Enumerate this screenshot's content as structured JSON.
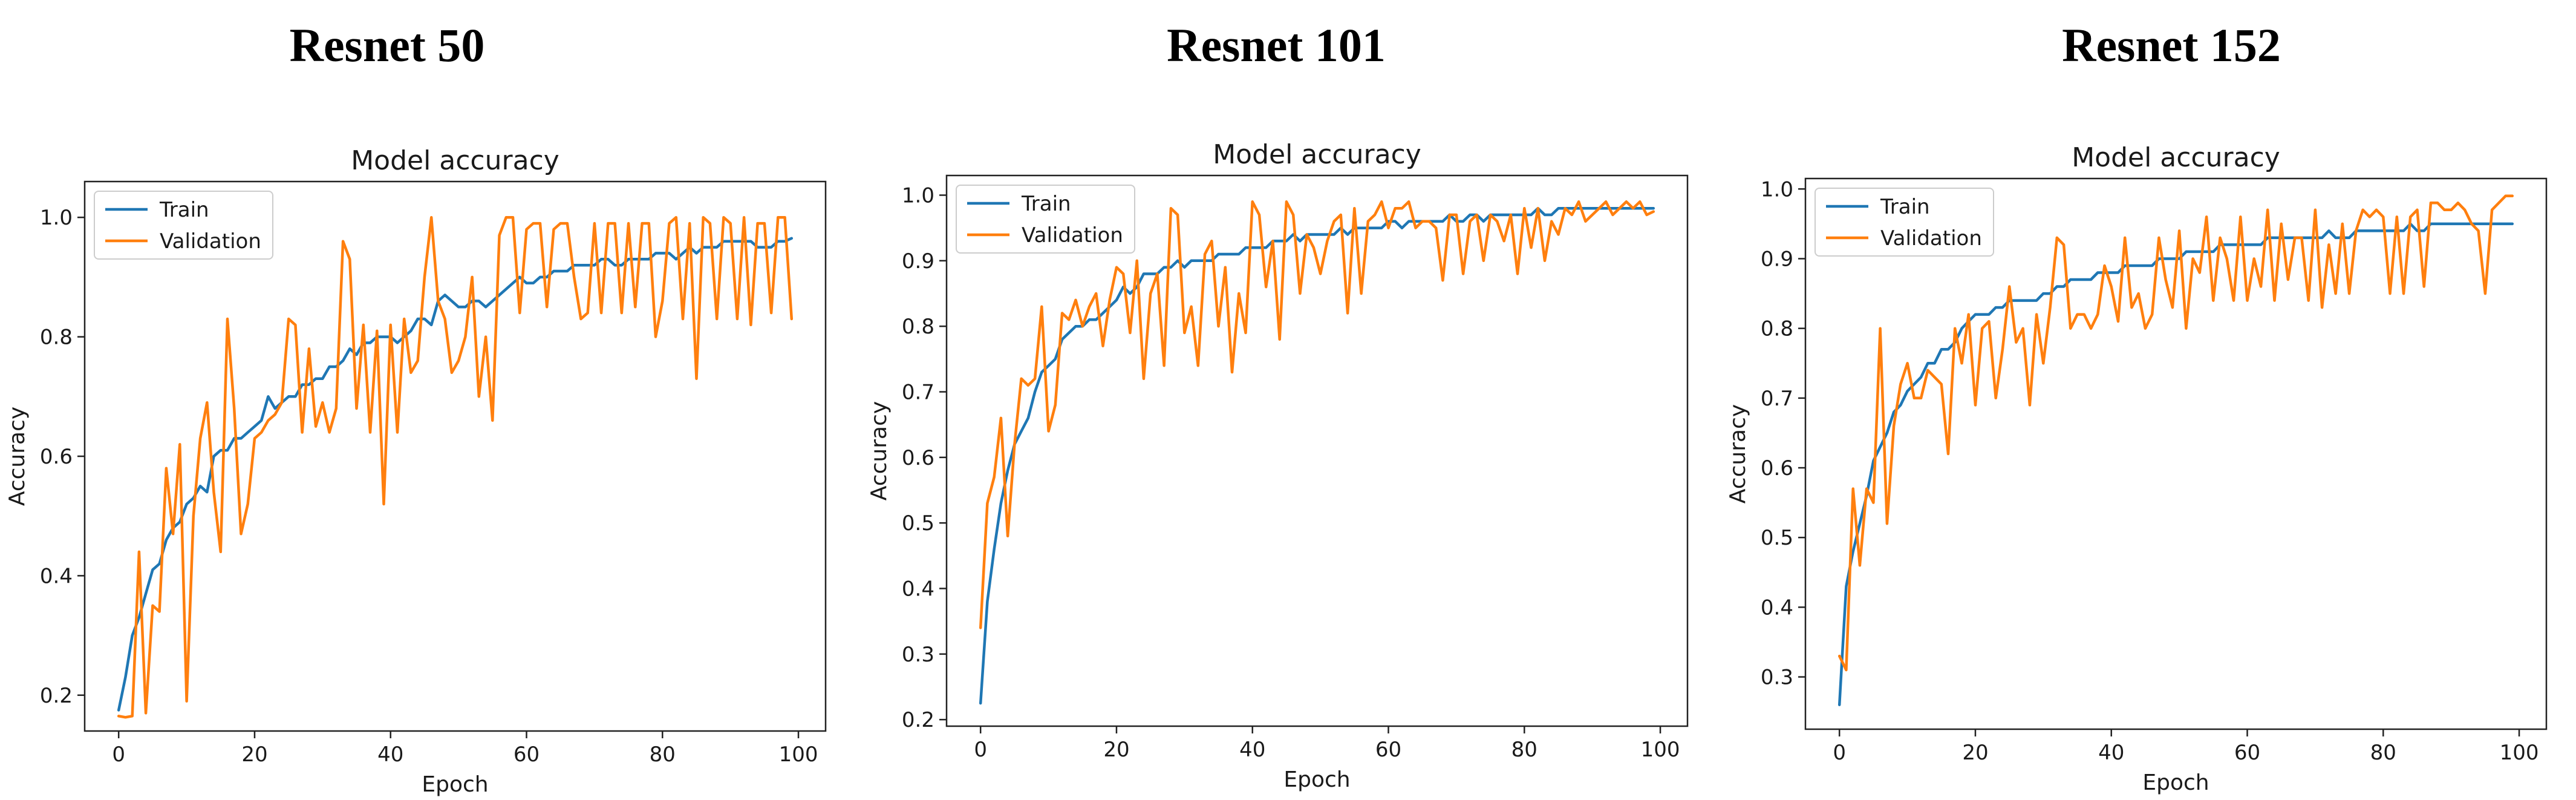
{
  "panels": [
    {
      "heading": "Resnet 50",
      "chart_data": {
        "type": "line",
        "title": "Model accuracy",
        "xlabel": "Epoch",
        "ylabel": "Accuracy",
        "xlim": [
          -5,
          104
        ],
        "ylim": [
          0.14,
          1.06
        ],
        "xticks": [
          0,
          20,
          40,
          60,
          80,
          100
        ],
        "yticks": [
          0.2,
          0.4,
          0.6,
          0.8,
          1.0
        ],
        "ytick_labels": [
          "0.2",
          "0.4",
          "0.6",
          "0.8",
          "1.0"
        ],
        "legend_position": "upper-left",
        "grid": false,
        "series": [
          {
            "name": "Train",
            "color": "#1f77b4",
            "values": [
              0.175,
              0.23,
              0.3,
              0.33,
              0.37,
              0.41,
              0.42,
              0.46,
              0.48,
              0.49,
              0.52,
              0.53,
              0.55,
              0.54,
              0.6,
              0.61,
              0.61,
              0.63,
              0.63,
              0.64,
              0.65,
              0.66,
              0.7,
              0.68,
              0.69,
              0.7,
              0.7,
              0.72,
              0.72,
              0.73,
              0.73,
              0.75,
              0.75,
              0.76,
              0.78,
              0.77,
              0.79,
              0.79,
              0.8,
              0.8,
              0.8,
              0.79,
              0.8,
              0.81,
              0.83,
              0.83,
              0.82,
              0.86,
              0.87,
              0.86,
              0.85,
              0.85,
              0.86,
              0.86,
              0.85,
              0.86,
              0.87,
              0.88,
              0.89,
              0.9,
              0.89,
              0.89,
              0.9,
              0.9,
              0.91,
              0.91,
              0.91,
              0.92,
              0.92,
              0.92,
              0.92,
              0.93,
              0.93,
              0.92,
              0.92,
              0.93,
              0.93,
              0.93,
              0.93,
              0.94,
              0.94,
              0.94,
              0.93,
              0.94,
              0.95,
              0.94,
              0.95,
              0.95,
              0.95,
              0.96,
              0.96,
              0.96,
              0.96,
              0.96,
              0.95,
              0.95,
              0.95,
              0.96,
              0.96,
              0.965
            ]
          },
          {
            "name": "Validation",
            "color": "#ff7f0e",
            "values": [
              0.165,
              0.163,
              0.165,
              0.44,
              0.17,
              0.35,
              0.34,
              0.58,
              0.47,
              0.62,
              0.19,
              0.5,
              0.63,
              0.69,
              0.54,
              0.44,
              0.83,
              0.68,
              0.47,
              0.52,
              0.63,
              0.64,
              0.66,
              0.67,
              0.69,
              0.83,
              0.82,
              0.64,
              0.78,
              0.65,
              0.69,
              0.64,
              0.68,
              0.96,
              0.93,
              0.68,
              0.82,
              0.64,
              0.81,
              0.52,
              0.82,
              0.64,
              0.83,
              0.74,
              0.76,
              0.9,
              1.0,
              0.86,
              0.83,
              0.74,
              0.76,
              0.8,
              0.9,
              0.7,
              0.8,
              0.66,
              0.97,
              1.0,
              1.0,
              0.84,
              0.98,
              0.99,
              0.99,
              0.85,
              0.98,
              0.99,
              0.99,
              0.9,
              0.83,
              0.84,
              0.99,
              0.84,
              0.99,
              0.99,
              0.84,
              0.99,
              0.85,
              0.99,
              0.99,
              0.8,
              0.86,
              0.99,
              1.0,
              0.83,
              0.99,
              0.73,
              1.0,
              0.99,
              0.83,
              1.0,
              0.99,
              0.83,
              1.0,
              0.82,
              0.99,
              0.99,
              0.84,
              1.0,
              1.0,
              0.83
            ]
          }
        ]
      }
    },
    {
      "heading": "Resnet 101",
      "chart_data": {
        "type": "line",
        "title": "Model accuracy",
        "xlabel": "Epoch",
        "ylabel": "Accuracy",
        "xlim": [
          -5,
          104
        ],
        "ylim": [
          0.19,
          1.03
        ],
        "xticks": [
          0,
          20,
          40,
          60,
          80,
          100
        ],
        "yticks": [
          0.2,
          0.3,
          0.4,
          0.5,
          0.6,
          0.7,
          0.8,
          0.9,
          1.0
        ],
        "ytick_labels": [
          "0.2",
          "0.3",
          "0.4",
          "0.5",
          "0.6",
          "0.7",
          "0.8",
          "0.9",
          "1.0"
        ],
        "legend_position": "upper-left",
        "grid": false,
        "series": [
          {
            "name": "Train",
            "color": "#1f77b4",
            "values": [
              0.225,
              0.38,
              0.46,
              0.53,
              0.58,
              0.62,
              0.64,
              0.66,
              0.7,
              0.73,
              0.74,
              0.75,
              0.78,
              0.79,
              0.8,
              0.8,
              0.81,
              0.81,
              0.82,
              0.83,
              0.84,
              0.86,
              0.85,
              0.86,
              0.88,
              0.88,
              0.88,
              0.89,
              0.89,
              0.9,
              0.89,
              0.9,
              0.9,
              0.9,
              0.9,
              0.91,
              0.91,
              0.91,
              0.91,
              0.92,
              0.92,
              0.92,
              0.92,
              0.93,
              0.93,
              0.93,
              0.94,
              0.93,
              0.94,
              0.94,
              0.94,
              0.94,
              0.94,
              0.95,
              0.94,
              0.95,
              0.95,
              0.95,
              0.95,
              0.95,
              0.96,
              0.96,
              0.95,
              0.96,
              0.96,
              0.96,
              0.96,
              0.96,
              0.96,
              0.97,
              0.96,
              0.96,
              0.97,
              0.97,
              0.96,
              0.97,
              0.97,
              0.97,
              0.97,
              0.97,
              0.97,
              0.97,
              0.98,
              0.97,
              0.97,
              0.98,
              0.98,
              0.98,
              0.98,
              0.98,
              0.98,
              0.98,
              0.98,
              0.98,
              0.98,
              0.98,
              0.98,
              0.98,
              0.98,
              0.98
            ]
          },
          {
            "name": "Validation",
            "color": "#ff7f0e",
            "values": [
              0.34,
              0.53,
              0.57,
              0.66,
              0.48,
              0.62,
              0.72,
              0.71,
              0.72,
              0.83,
              0.64,
              0.68,
              0.82,
              0.81,
              0.84,
              0.8,
              0.83,
              0.85,
              0.77,
              0.84,
              0.89,
              0.88,
              0.79,
              0.9,
              0.72,
              0.85,
              0.88,
              0.74,
              0.98,
              0.97,
              0.79,
              0.83,
              0.74,
              0.91,
              0.93,
              0.8,
              0.89,
              0.73,
              0.85,
              0.79,
              0.99,
              0.97,
              0.86,
              0.93,
              0.78,
              0.99,
              0.97,
              0.85,
              0.94,
              0.92,
              0.88,
              0.93,
              0.96,
              0.97,
              0.82,
              0.98,
              0.85,
              0.96,
              0.97,
              0.99,
              0.95,
              0.98,
              0.98,
              0.99,
              0.95,
              0.96,
              0.96,
              0.95,
              0.87,
              0.97,
              0.97,
              0.88,
              0.96,
              0.97,
              0.9,
              0.97,
              0.96,
              0.93,
              0.97,
              0.88,
              0.98,
              0.92,
              0.98,
              0.9,
              0.96,
              0.94,
              0.98,
              0.97,
              0.99,
              0.96,
              0.97,
              0.98,
              0.99,
              0.97,
              0.98,
              0.99,
              0.98,
              0.99,
              0.97,
              0.975
            ]
          }
        ]
      }
    },
    {
      "heading": "Resnet 152",
      "chart_data": {
        "type": "line",
        "title": "Model accuracy",
        "xlabel": "Epoch",
        "ylabel": "Accuracy",
        "xlim": [
          -5,
          104
        ],
        "ylim": [
          0.225,
          1.015
        ],
        "xticks": [
          0,
          20,
          40,
          60,
          80,
          100
        ],
        "yticks": [
          0.3,
          0.4,
          0.5,
          0.6,
          0.7,
          0.8,
          0.9,
          1.0
        ],
        "ytick_labels": [
          "0.3",
          "0.4",
          "0.5",
          "0.6",
          "0.7",
          "0.8",
          "0.9",
          "1.0"
        ],
        "legend_position": "upper-left",
        "grid": false,
        "series": [
          {
            "name": "Train",
            "color": "#1f77b4",
            "values": [
              0.26,
              0.43,
              0.48,
              0.52,
              0.56,
              0.61,
              0.63,
              0.65,
              0.68,
              0.69,
              0.71,
              0.72,
              0.73,
              0.75,
              0.75,
              0.77,
              0.77,
              0.78,
              0.8,
              0.81,
              0.82,
              0.82,
              0.82,
              0.83,
              0.83,
              0.84,
              0.84,
              0.84,
              0.84,
              0.84,
              0.85,
              0.85,
              0.86,
              0.86,
              0.87,
              0.87,
              0.87,
              0.87,
              0.88,
              0.88,
              0.88,
              0.88,
              0.89,
              0.89,
              0.89,
              0.89,
              0.89,
              0.9,
              0.9,
              0.9,
              0.9,
              0.91,
              0.91,
              0.91,
              0.91,
              0.91,
              0.92,
              0.92,
              0.92,
              0.92,
              0.92,
              0.92,
              0.92,
              0.93,
              0.93,
              0.93,
              0.93,
              0.93,
              0.93,
              0.93,
              0.93,
              0.93,
              0.94,
              0.93,
              0.93,
              0.93,
              0.94,
              0.94,
              0.94,
              0.94,
              0.94,
              0.94,
              0.94,
              0.94,
              0.95,
              0.94,
              0.94,
              0.95,
              0.95,
              0.95,
              0.95,
              0.95,
              0.95,
              0.95,
              0.95,
              0.95,
              0.95,
              0.95,
              0.95,
              0.95
            ]
          },
          {
            "name": "Validation",
            "color": "#ff7f0e",
            "values": [
              0.33,
              0.31,
              0.57,
              0.46,
              0.57,
              0.55,
              0.8,
              0.52,
              0.66,
              0.72,
              0.75,
              0.7,
              0.7,
              0.74,
              0.73,
              0.72,
              0.62,
              0.8,
              0.75,
              0.82,
              0.69,
              0.8,
              0.81,
              0.7,
              0.77,
              0.86,
              0.78,
              0.8,
              0.69,
              0.82,
              0.75,
              0.83,
              0.93,
              0.92,
              0.8,
              0.82,
              0.82,
              0.8,
              0.82,
              0.89,
              0.86,
              0.81,
              0.93,
              0.83,
              0.85,
              0.8,
              0.82,
              0.93,
              0.87,
              0.83,
              0.94,
              0.8,
              0.9,
              0.88,
              0.96,
              0.84,
              0.93,
              0.9,
              0.84,
              0.96,
              0.84,
              0.9,
              0.86,
              0.97,
              0.84,
              0.95,
              0.87,
              0.93,
              0.93,
              0.84,
              0.97,
              0.83,
              0.92,
              0.85,
              0.95,
              0.85,
              0.94,
              0.97,
              0.96,
              0.97,
              0.96,
              0.85,
              0.96,
              0.85,
              0.96,
              0.97,
              0.86,
              0.98,
              0.98,
              0.97,
              0.97,
              0.98,
              0.97,
              0.95,
              0.94,
              0.85,
              0.97,
              0.98,
              0.99,
              0.99
            ]
          }
        ]
      }
    }
  ]
}
